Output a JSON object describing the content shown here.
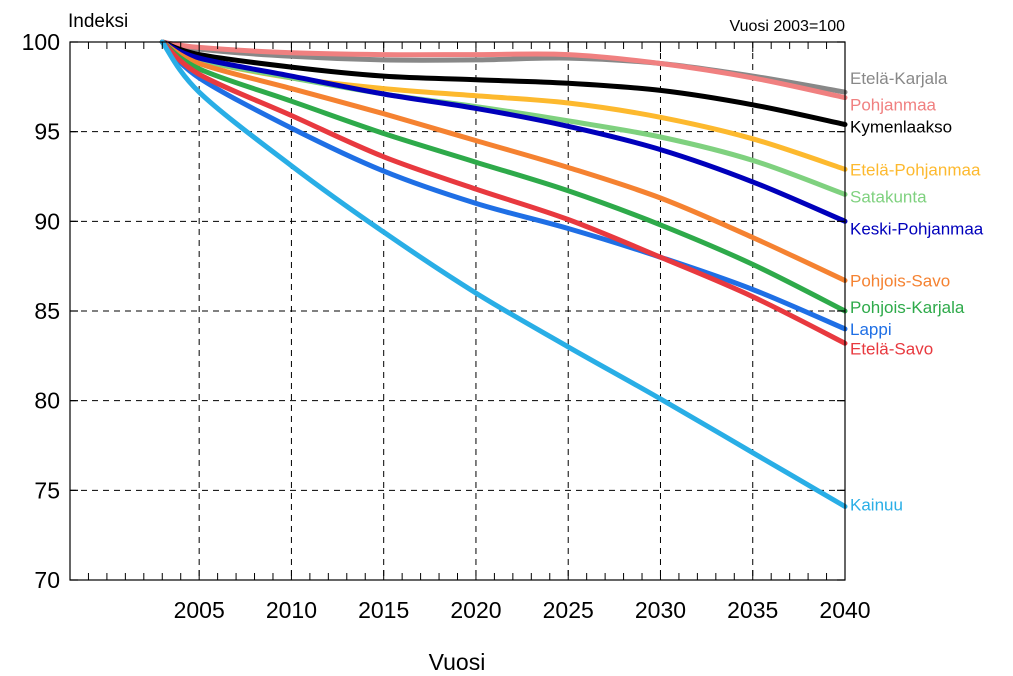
{
  "chart_data": {
    "type": "line",
    "ylabel": "Indeksi",
    "xlabel": "Vuosi",
    "note": "Vuosi 2003=100",
    "xlim": [
      1998,
      2040
    ],
    "ylim": [
      70,
      100
    ],
    "xticks": [
      2005,
      2010,
      2015,
      2020,
      2025,
      2030,
      2035,
      2040
    ],
    "yticks": [
      70,
      75,
      80,
      85,
      90,
      95,
      100
    ],
    "grid": true,
    "x": [
      2003,
      2005,
      2010,
      2015,
      2020,
      2025,
      2030,
      2035,
      2040
    ],
    "series": [
      {
        "name": "Etelä-Karjala",
        "color": "#888888",
        "values": [
          100,
          99.6,
          99.2,
          99.0,
          99.0,
          99.1,
          98.8,
          98.1,
          97.2
        ]
      },
      {
        "name": "Pohjanmaa",
        "color": "#f08080",
        "values": [
          100,
          99.7,
          99.4,
          99.3,
          99.3,
          99.3,
          98.8,
          98.0,
          96.9
        ]
      },
      {
        "name": "Kymenlaakso",
        "color": "#000000",
        "values": [
          100,
          99.3,
          98.6,
          98.1,
          97.9,
          97.7,
          97.3,
          96.5,
          95.4
        ]
      },
      {
        "name": "Etelä-Pohjanmaa",
        "color": "#fdb92e",
        "values": [
          100,
          99.0,
          98.0,
          97.4,
          97.0,
          96.6,
          95.8,
          94.6,
          92.9
        ]
      },
      {
        "name": "Satakunta",
        "color": "#7fd17f",
        "values": [
          100,
          99.0,
          98.0,
          97.1,
          96.4,
          95.6,
          94.7,
          93.4,
          91.5
        ]
      },
      {
        "name": "Keski-Pohjanmaa",
        "color": "#0000bb",
        "values": [
          100,
          99.1,
          98.1,
          97.1,
          96.3,
          95.3,
          94.0,
          92.2,
          90.0
        ]
      },
      {
        "name": "Pohjois-Savo",
        "color": "#f58231",
        "values": [
          100,
          98.8,
          97.4,
          96.0,
          94.5,
          93.0,
          91.3,
          89.1,
          86.7
        ]
      },
      {
        "name": "Pohjois-Karjala",
        "color": "#2eaa4a",
        "values": [
          100,
          98.5,
          96.7,
          94.9,
          93.3,
          91.7,
          89.8,
          87.6,
          85.0
        ]
      },
      {
        "name": "Lappi",
        "color": "#1f6fe5",
        "values": [
          100,
          98.0,
          95.2,
          92.8,
          91.0,
          89.6,
          88.0,
          86.2,
          84.0
        ]
      },
      {
        "name": "Etelä-Savo",
        "color": "#e8393f",
        "values": [
          100,
          98.2,
          95.9,
          93.6,
          91.8,
          90.1,
          88.0,
          85.8,
          83.2
        ]
      },
      {
        "name": "Kainuu",
        "color": "#29aee6",
        "values": [
          100,
          97.2,
          93.1,
          89.4,
          86.0,
          83.0,
          80.1,
          77.1,
          74.1
        ]
      }
    ]
  }
}
